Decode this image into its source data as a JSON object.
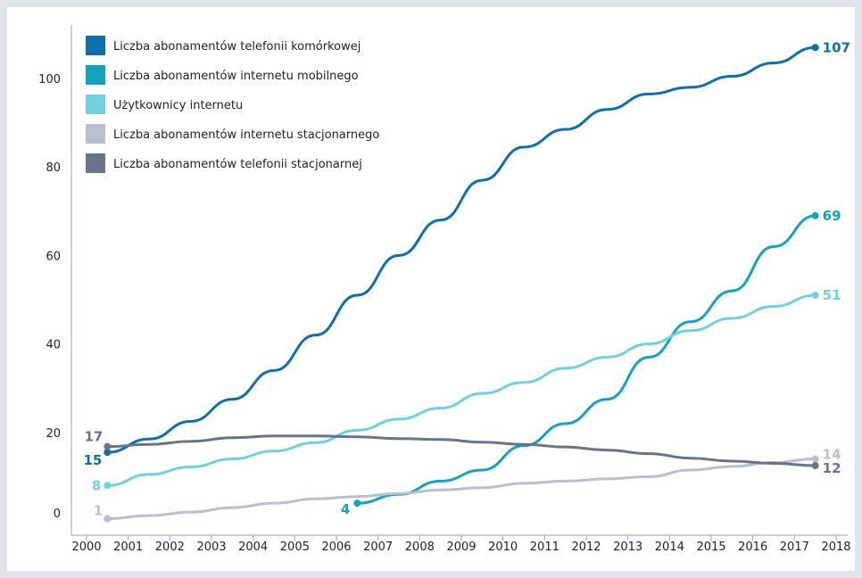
{
  "chart_data": {
    "type": "line",
    "title": "",
    "xlabel": "",
    "ylabel": "",
    "xlim": [
      2000,
      2018
    ],
    "ylim": [
      0,
      110
    ],
    "x_ticks": [
      "2000",
      "2001",
      "2002",
      "2003",
      "2004",
      "2005",
      "2006",
      "2007",
      "2008",
      "2009",
      "2010",
      "2011",
      "2012",
      "2013",
      "2014",
      "2015",
      "2016",
      "2017",
      "2018"
    ],
    "y_ticks": [
      "0",
      "20",
      "40",
      "60",
      "80",
      "100"
    ],
    "grid": false,
    "legend_position": "top-left",
    "series": [
      {
        "name": "Liczba abonamentów telefonii komórkowej",
        "color": "#0f6fa8",
        "x": [
          2000.5,
          2001.5,
          2002.5,
          2003.5,
          2004.5,
          2005.5,
          2006.5,
          2007.5,
          2008.5,
          2009.5,
          2010.5,
          2011.5,
          2012.5,
          2013.5,
          2014.5,
          2015.5,
          2016.5,
          2017.5
        ],
        "y": [
          15.5,
          18.5,
          22.5,
          27.5,
          34,
          42,
          51,
          60,
          68,
          77,
          84.5,
          88.5,
          93,
          96.5,
          98,
          100.5,
          103.5,
          107
        ],
        "start_label": "15",
        "end_label": "107"
      },
      {
        "name": "Liczba abonamentów internetu mobilnego",
        "color": "#16a2ba",
        "x": [
          2006.5,
          2007.5,
          2008.5,
          2009.5,
          2010.5,
          2011.5,
          2012.5,
          2013.5,
          2014.5,
          2015.5,
          2016.5,
          2017.5
        ],
        "y": [
          4,
          6,
          9,
          11.5,
          17,
          22,
          27.5,
          37,
          45,
          52,
          62,
          69
        ],
        "start_label": "4",
        "end_label": "69"
      },
      {
        "name": "Użytkownicy internetu",
        "color": "#72cfe0",
        "x": [
          2000.5,
          2001.5,
          2002.5,
          2003.5,
          2004.5,
          2005.5,
          2006.5,
          2007.5,
          2008.5,
          2009.5,
          2010.5,
          2011.5,
          2012.5,
          2013.5,
          2014.5,
          2015.5,
          2016.5,
          2017.5
        ],
        "y": [
          8,
          10.5,
          12.2,
          14,
          15.8,
          17.7,
          20.5,
          23,
          25.5,
          28.8,
          31.3,
          34.5,
          37,
          40,
          43,
          45.8,
          48.5,
          51
        ],
        "start_label": "8",
        "end_label": "51"
      },
      {
        "name": "Liczba abonamentów internetu stacjonarnego",
        "color": "#b7bfd1",
        "x": [
          2000.5,
          2001.5,
          2002.5,
          2003.5,
          2004.5,
          2005.5,
          2006.5,
          2007.5,
          2008.5,
          2009.5,
          2010.5,
          2011.5,
          2012.5,
          2013.5,
          2014.5,
          2015.5,
          2016.5,
          2017.5
        ],
        "y": [
          0.5,
          1.2,
          2,
          3,
          4,
          5,
          5.5,
          6.2,
          7,
          7.5,
          8.5,
          9,
          9.5,
          10,
          11.5,
          12.3,
          13.2,
          14
        ],
        "start_label": "1",
        "end_label": "14"
      },
      {
        "name": "Liczba abonamentów telefonii stacjonarnej",
        "color": "#68748a",
        "x": [
          2000.5,
          2001.5,
          2002.5,
          2003.5,
          2004.5,
          2005.5,
          2006.5,
          2007.5,
          2008.5,
          2009.5,
          2010.5,
          2011.5,
          2012.5,
          2013.5,
          2014.5,
          2015.5,
          2016.5,
          2017.5
        ],
        "y": [
          16.8,
          17.3,
          18,
          18.8,
          19.2,
          19.2,
          19,
          18.6,
          18.4,
          17.8,
          17.3,
          16.7,
          16,
          15.2,
          14.2,
          13.5,
          13,
          12.5
        ],
        "start_label": "17",
        "end_label": "12"
      }
    ]
  }
}
